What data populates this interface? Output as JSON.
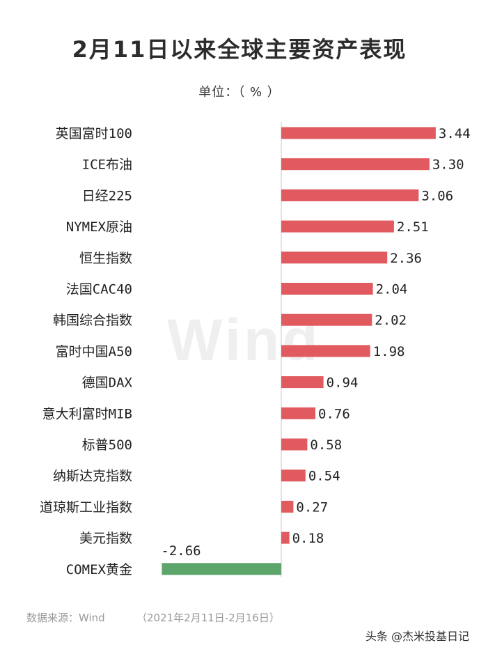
{
  "header": {
    "title": "2月11日以来全球主要资产表现",
    "unit": "单位：（ % ）"
  },
  "footer": {
    "source": "数据来源：Wind",
    "range": "（2021年2月11日-2月16日）",
    "credit": "头条 @杰米投基日记"
  },
  "watermark": "Wind",
  "colors": {
    "positive": "#e05a5f",
    "negative": "#5da56a",
    "axis": "#c8c8c8"
  },
  "chart_data": {
    "type": "bar",
    "orientation": "horizontal",
    "title": "2月11日以来全球主要资产表现",
    "unit": "单位：（ % ）",
    "categories": [
      "英国富时100",
      "ICE布油",
      "日经225",
      "NYMEX原油",
      "恒生指数",
      "法国CAC40",
      "韩国综合指数",
      "富时中国A50",
      "德国DAX",
      "意大利富时MIB",
      "标普500",
      "纳斯达克指数",
      "道琼斯工业指数",
      "美元指数",
      "COMEX黄金"
    ],
    "values": [
      3.44,
      3.3,
      3.06,
      2.51,
      2.36,
      2.04,
      2.02,
      1.98,
      0.94,
      0.76,
      0.58,
      0.54,
      0.27,
      0.18,
      -2.66
    ],
    "value_labels": [
      "3.44",
      "3.30",
      "3.06",
      "2.51",
      "2.36",
      "2.04",
      "2.02",
      "1.98",
      "0.94",
      "0.76",
      "0.58",
      "0.54",
      "0.27",
      "0.18",
      "-2.66"
    ],
    "grid": false,
    "legend": false
  }
}
